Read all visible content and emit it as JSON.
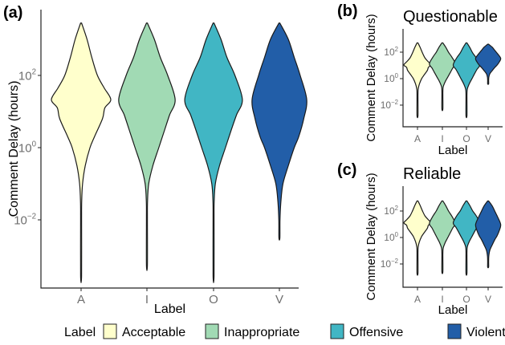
{
  "chart_data": [
    {
      "type": "violin",
      "panel_tag": "(a)",
      "title": "",
      "xlabel": "Label",
      "ylabel": "Comment Delay (hours)",
      "yscale": "log10",
      "categories": [
        "A",
        "I",
        "O",
        "V"
      ],
      "ytick_exponents": [
        "2",
        "0",
        "-2"
      ],
      "ranges_log10": [
        [
          -3.55,
          3.45
        ],
        [
          -3.25,
          3.45
        ],
        [
          -3.55,
          3.45
        ],
        [
          -2.5,
          3.45
        ]
      ]
    },
    {
      "type": "violin",
      "panel_tag": "(b)",
      "title": "Questionable",
      "xlabel": "Label",
      "ylabel": "Comment Delay (hours)",
      "yscale": "log10",
      "categories": [
        "A",
        "I",
        "O",
        "V"
      ],
      "ytick_exponents": [
        "2",
        "0",
        "-2"
      ],
      "ranges_log10": [
        [
          -2.8,
          2.7
        ],
        [
          -2.3,
          2.7
        ],
        [
          -2.8,
          2.7
        ],
        [
          -0.4,
          2.6
        ]
      ]
    },
    {
      "type": "violin",
      "panel_tag": "(c)",
      "title": "Reliable",
      "xlabel": "Label",
      "ylabel": "Comment Delay (hours)",
      "yscale": "log10",
      "categories": [
        "A",
        "I",
        "O",
        "V"
      ],
      "ytick_exponents": [
        "2",
        "0",
        "-2"
      ],
      "ranges_log10": [
        [
          -2.7,
          2.76
        ],
        [
          -2.6,
          2.76
        ],
        [
          -2.7,
          2.76
        ],
        [
          -2.24,
          2.76
        ]
      ]
    }
  ],
  "density_profiles": [
    [
      [
        3.45,
        0
      ],
      [
        3.0,
        0.2
      ],
      [
        2.5,
        0.36
      ],
      [
        2.0,
        0.55
      ],
      [
        1.65,
        0.78
      ],
      [
        1.33,
        1.0
      ],
      [
        1.1,
        0.8
      ],
      [
        0.8,
        0.72
      ],
      [
        0.3,
        0.45
      ],
      [
        0,
        0.3
      ],
      [
        -0.5,
        0.14
      ],
      [
        -1,
        0.05
      ],
      [
        -1.5,
        0.02
      ],
      [
        -2,
        0.01
      ],
      [
        -3.55,
        0
      ]
    ],
    [
      [
        3.45,
        0
      ],
      [
        3.0,
        0.25
      ],
      [
        2.5,
        0.45
      ],
      [
        2.0,
        0.7
      ],
      [
        1.33,
        0.95
      ],
      [
        0.9,
        0.76
      ],
      [
        0.5,
        0.6
      ],
      [
        0,
        0.4
      ],
      [
        -0.5,
        0.2
      ],
      [
        -1,
        0.06
      ],
      [
        -1.5,
        0.02
      ],
      [
        -2,
        0.01
      ],
      [
        -3.25,
        0
      ]
    ],
    [
      [
        3.45,
        0
      ],
      [
        3.0,
        0.25
      ],
      [
        2.5,
        0.45
      ],
      [
        2.0,
        0.72
      ],
      [
        1.33,
        0.97
      ],
      [
        0.9,
        0.77
      ],
      [
        0.5,
        0.6
      ],
      [
        0,
        0.4
      ],
      [
        -0.5,
        0.2
      ],
      [
        -1,
        0.06
      ],
      [
        -1.5,
        0.02
      ],
      [
        -2,
        0.01
      ],
      [
        -3.55,
        0
      ]
    ],
    [
      [
        3.45,
        0
      ],
      [
        3.0,
        0.3
      ],
      [
        2.5,
        0.5
      ],
      [
        2.0,
        0.7
      ],
      [
        1.33,
        0.92
      ],
      [
        0.8,
        0.82
      ],
      [
        0.3,
        0.65
      ],
      [
        0,
        0.5
      ],
      [
        -0.5,
        0.3
      ],
      [
        -1,
        0.12
      ],
      [
        -1.5,
        0.05
      ],
      [
        -2,
        0.02
      ],
      [
        -2.5,
        0
      ]
    ]
  ],
  "legend": {
    "title": "Label",
    "items": [
      {
        "label": "Acceptable",
        "color": "#ffffcc"
      },
      {
        "label": "Inappropriate",
        "color": "#a1dab4"
      },
      {
        "label": "Offensive",
        "color": "#41b6c4"
      },
      {
        "label": "Violent",
        "color": "#225ea8"
      }
    ]
  }
}
